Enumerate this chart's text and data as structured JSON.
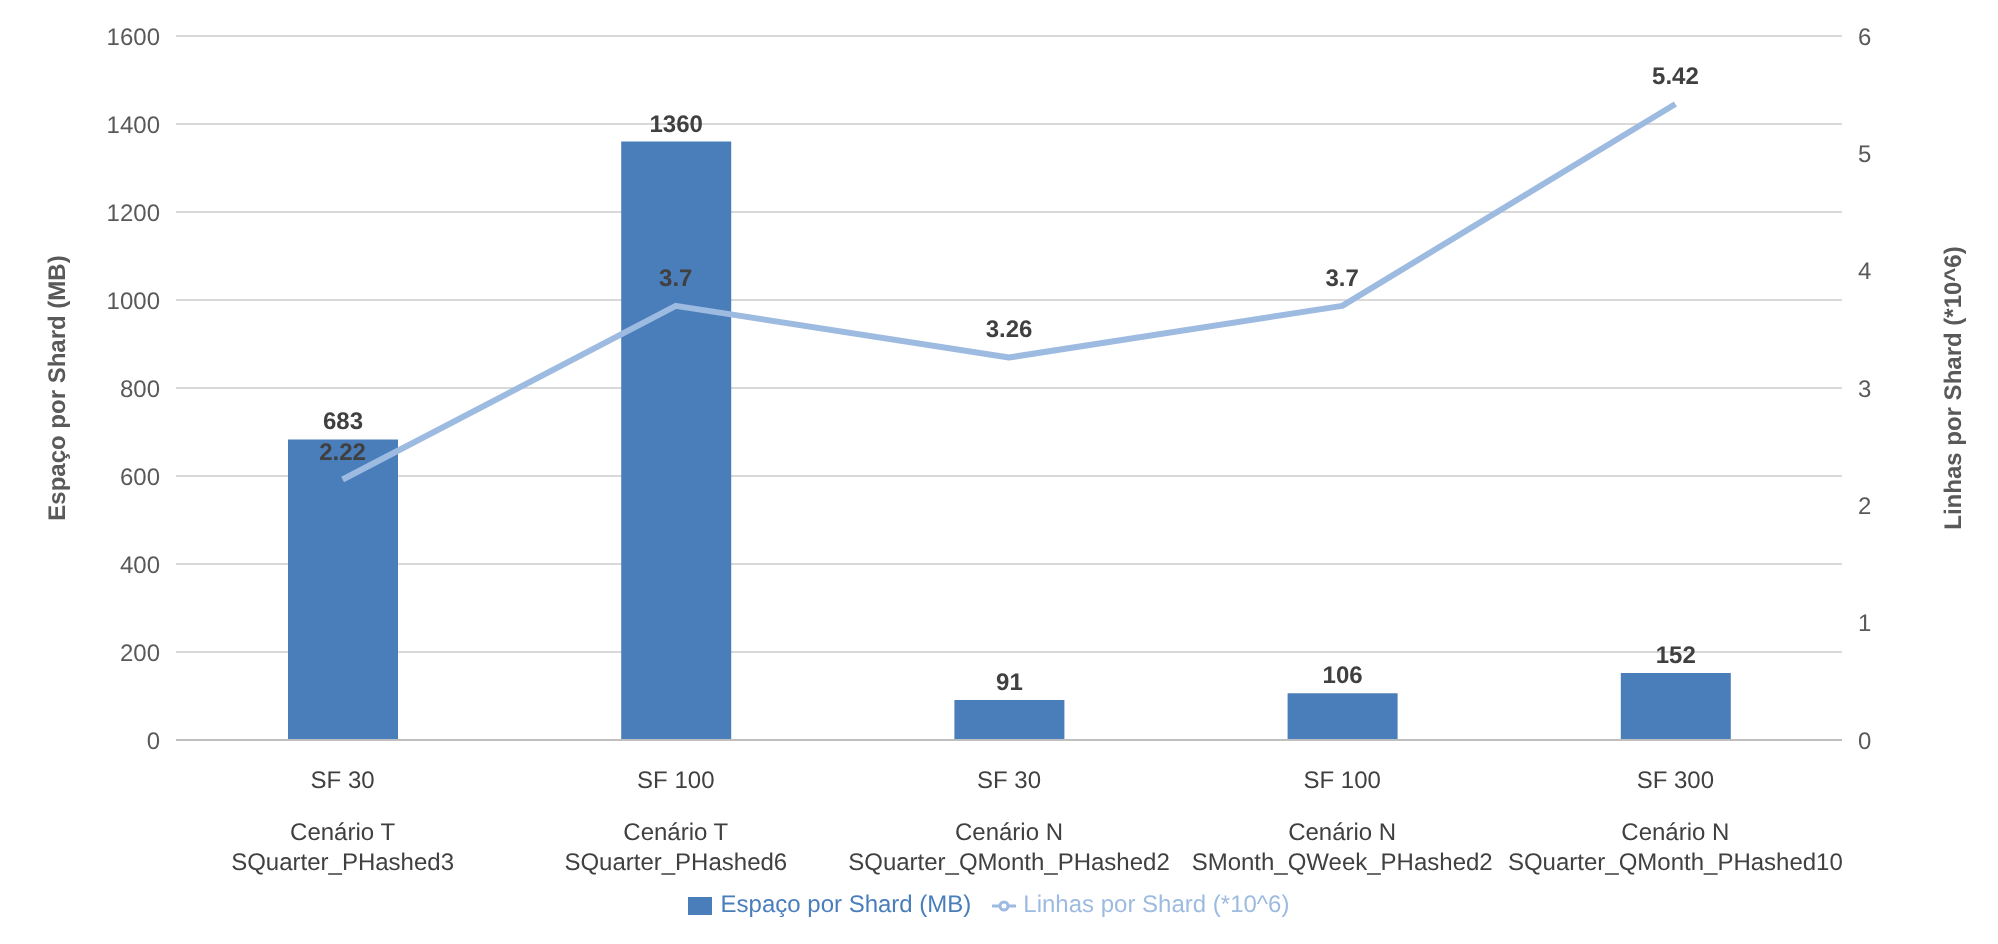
{
  "chart_data": {
    "type": "bar",
    "categories": [
      "SF 30\nCenário T\nSQuarter_PHashed3",
      "SF 100\nCenário T\nSQuarter_PHashed6",
      "SF 30\nCenário N\nSQuarter_QMonth_PHashed2",
      "SF 100\nCenário N\nSMonth_QWeek_PHashed2",
      "SF 300\nCenário N\nSQuarter_QMonth_PHashed10"
    ],
    "series": [
      {
        "name": "Espaço por Shard (MB)",
        "color": "#4a7ebb",
        "values": [
          683,
          1360,
          91,
          106,
          152
        ]
      },
      {
        "name": "Linhas por Shard (*10^6)",
        "type": "line",
        "axis": "y2",
        "color": "#9dbbe0",
        "values": [
          2.22,
          3.7,
          3.26,
          3.7,
          5.42
        ]
      }
    ],
    "ylabel": "Espaço por Shard (MB)",
    "y2label": "Linhas por Shard (*10^6)",
    "ylim": [
      0,
      1600
    ],
    "yticks": [
      0,
      200,
      400,
      600,
      800,
      1000,
      1200,
      1400,
      1600
    ],
    "y2lim": [
      0,
      6
    ],
    "y2ticks": [
      0,
      1,
      2,
      3,
      4,
      5,
      6
    ],
    "grid": "y",
    "legend": "bottom",
    "data_labels": true,
    "marker": "none"
  }
}
